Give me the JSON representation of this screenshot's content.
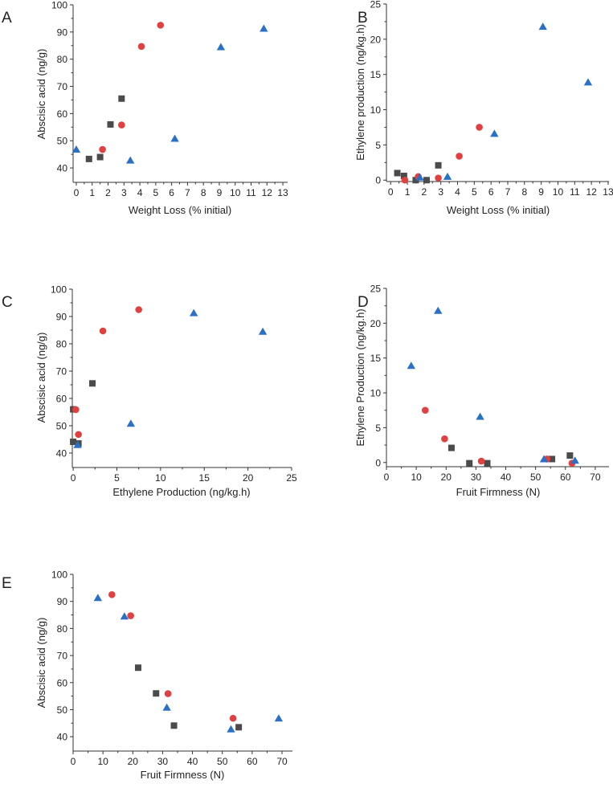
{
  "colors": {
    "square": "#4b4b4b",
    "circle": "#e0403f",
    "triangle": "#2a70c6"
  },
  "chart_data": [
    {
      "panel": "A",
      "type": "scatter",
      "xlabel": "Weight Loss (% initial)",
      "ylabel": "Abscisic acid (ng/g)",
      "xlim": [
        -0.2,
        13.3
      ],
      "ylim": [
        34.7,
        100
      ],
      "xticks": [
        0,
        1,
        2,
        3,
        4,
        5,
        6,
        7,
        8,
        9,
        10,
        11,
        12,
        13
      ],
      "yticks": [
        40,
        50,
        60,
        70,
        80,
        90,
        100
      ],
      "grid": false,
      "series": [
        {
          "marker": "square",
          "points": [
            [
              0.8,
              43.3
            ],
            [
              1.5,
              44
            ],
            [
              2.15,
              56
            ],
            [
              2.85,
              65.5
            ]
          ]
        },
        {
          "marker": "circle",
          "points": [
            [
              1.65,
              46.8
            ],
            [
              2.85,
              55.8
            ],
            [
              4.1,
              84.7
            ],
            [
              5.3,
              92.5
            ]
          ]
        },
        {
          "marker": "triangle",
          "points": [
            [
              0,
              46.8
            ],
            [
              3.4,
              42.8
            ],
            [
              6.2,
              50.8
            ],
            [
              9.1,
              84.5
            ],
            [
              11.8,
              91.3
            ]
          ]
        }
      ]
    },
    {
      "panel": "B",
      "type": "scatter",
      "xlabel": "Weight Loss (% initial)",
      "ylabel": "Ethylene production (ng/kg.h)",
      "xlim": [
        -0.25,
        13.05
      ],
      "ylim": [
        -0.2,
        25
      ],
      "xticks": [
        0,
        1,
        2,
        3,
        4,
        5,
        6,
        7,
        8,
        9,
        10,
        11,
        12,
        13
      ],
      "yticks": [
        0,
        5,
        10,
        15,
        20,
        25
      ],
      "grid": false,
      "series": [
        {
          "marker": "square",
          "points": [
            [
              0.4,
              1.0
            ],
            [
              0.8,
              0.6
            ],
            [
              1.5,
              0
            ],
            [
              2.15,
              0
            ],
            [
              2.85,
              2.1
            ]
          ]
        },
        {
          "marker": "circle",
          "points": [
            [
              0.85,
              0
            ],
            [
              1.65,
              0.5
            ],
            [
              2.85,
              0.3
            ],
            [
              4.1,
              3.4
            ],
            [
              5.3,
              7.5
            ]
          ]
        },
        {
          "marker": "triangle",
          "points": [
            [
              1.75,
              0.4
            ],
            [
              3.4,
              0.5
            ],
            [
              6.2,
              6.6
            ],
            [
              9.1,
              21.8
            ],
            [
              11.8,
              13.9
            ]
          ]
        }
      ]
    },
    {
      "panel": "C",
      "type": "scatter",
      "xlabel": "Ethylene Production (ng/kg.h)",
      "ylabel": "Abscisic acid (ng/g)",
      "xlim": [
        -0.1,
        25
      ],
      "ylim": [
        34.7,
        100
      ],
      "xticks": [
        0,
        5,
        10,
        15,
        20,
        25
      ],
      "yticks": [
        40,
        50,
        60,
        70,
        80,
        90,
        100
      ],
      "grid": false,
      "series": [
        {
          "marker": "square",
          "points": [
            [
              0,
              56
            ],
            [
              0,
              44.1
            ],
            [
              0.6,
              43.5
            ],
            [
              2.2,
              65.5
            ]
          ]
        },
        {
          "marker": "circle",
          "points": [
            [
              0.3,
              55.9
            ],
            [
              0.6,
              46.8
            ],
            [
              3.4,
              84.7
            ],
            [
              7.5,
              92.5
            ]
          ]
        },
        {
          "marker": "triangle",
          "points": [
            [
              0.5,
              43
            ],
            [
              6.6,
              50.8
            ],
            [
              13.8,
              91.3
            ],
            [
              21.7,
              84.5
            ]
          ]
        }
      ]
    },
    {
      "panel": "D",
      "type": "scatter",
      "xlabel": "Fruit Firmness (N)",
      "ylabel": "Ethylene Production (ng/kg.h)",
      "xlim": [
        0,
        74.6
      ],
      "ylim": [
        -0.6,
        25
      ],
      "xticks": [
        0,
        10,
        20,
        30,
        40,
        50,
        60,
        70
      ],
      "yticks": [
        0,
        5,
        10,
        15,
        20,
        25
      ],
      "grid": false,
      "series": [
        {
          "marker": "square",
          "points": [
            [
              21.8,
              2.1
            ],
            [
              27.8,
              -0.1
            ],
            [
              33.8,
              -0.1
            ],
            [
              55.5,
              0.5
            ],
            [
              61.5,
              1.0
            ]
          ]
        },
        {
          "marker": "circle",
          "points": [
            [
              13,
              7.5
            ],
            [
              19.5,
              3.4
            ],
            [
              31.8,
              0.2
            ],
            [
              53.8,
              0.5
            ],
            [
              62.2,
              -0.1
            ]
          ]
        },
        {
          "marker": "triangle",
          "points": [
            [
              8.3,
              13.9
            ],
            [
              17.3,
              21.8
            ],
            [
              31.4,
              6.6
            ],
            [
              52.8,
              0.5
            ],
            [
              63.2,
              0.3
            ]
          ]
        }
      ]
    },
    {
      "panel": "E",
      "type": "scatter",
      "xlabel": "Fruit Firmness (N)",
      "ylabel": "Abscisic acid (ng/g)",
      "xlim": [
        0,
        73.5
      ],
      "ylim": [
        34.7,
        100
      ],
      "xticks": [
        0,
        10,
        20,
        30,
        40,
        50,
        60,
        70
      ],
      "yticks": [
        40,
        50,
        60,
        70,
        80,
        90,
        100
      ],
      "grid": false,
      "series": [
        {
          "marker": "square",
          "points": [
            [
              21.8,
              65.5
            ],
            [
              27.8,
              56
            ],
            [
              33.8,
              44.1
            ],
            [
              55.5,
              43.5
            ]
          ]
        },
        {
          "marker": "circle",
          "points": [
            [
              13,
              92.5
            ],
            [
              19.3,
              84.7
            ],
            [
              31.8,
              55.9
            ],
            [
              53.6,
              46.8
            ]
          ]
        },
        {
          "marker": "triangle",
          "points": [
            [
              8.3,
              91.3
            ],
            [
              17.2,
              84.5
            ],
            [
              31.4,
              50.8
            ],
            [
              52.9,
              42.8
            ],
            [
              68.9,
              46.8
            ]
          ]
        }
      ]
    }
  ]
}
